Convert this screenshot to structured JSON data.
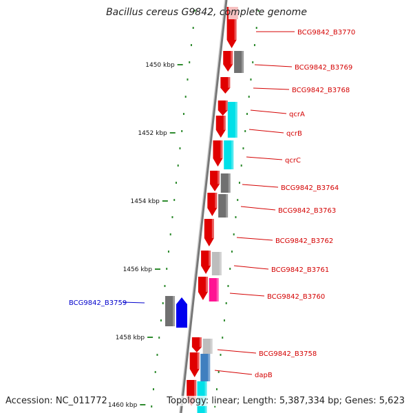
{
  "title": "Bacillus cereus G9842, complete genome",
  "accession_label": "Accession: NC_011772",
  "topology_label": "Topology: linear; Length: 5,387,334 bp; Genes: 5,623",
  "colors": {
    "forward_gene": "#e00000",
    "reverse_gene": "#0000ee",
    "feature_dark": "#707070",
    "feature_light": "#bdbdbd",
    "feature_cyan": "#00e0e8",
    "feature_pink": "#ff1493",
    "feature_blue": "#3f7fbf",
    "label_red": "#d40000",
    "label_blue": "#0000cc",
    "tick": "#2e8b2e"
  },
  "scale_ticks": [
    "1450 kbp",
    "1452 kbp",
    "1454 kbp",
    "1456 kbp",
    "1458 kbp",
    "1460 kbp"
  ],
  "gene_labels": [
    "BCG9842_B3770",
    "BCG9842_B3769",
    "BCG9842_B3768",
    "qcrA",
    "qcrB",
    "qcrC",
    "BCG9842_B3764",
    "BCG9842_B3763",
    "BCG9842_B3762",
    "BCG9842_B3761",
    "BCG9842_B3760",
    "BCG9842_B3759",
    "BCG9842_B3758",
    "dapB"
  ]
}
